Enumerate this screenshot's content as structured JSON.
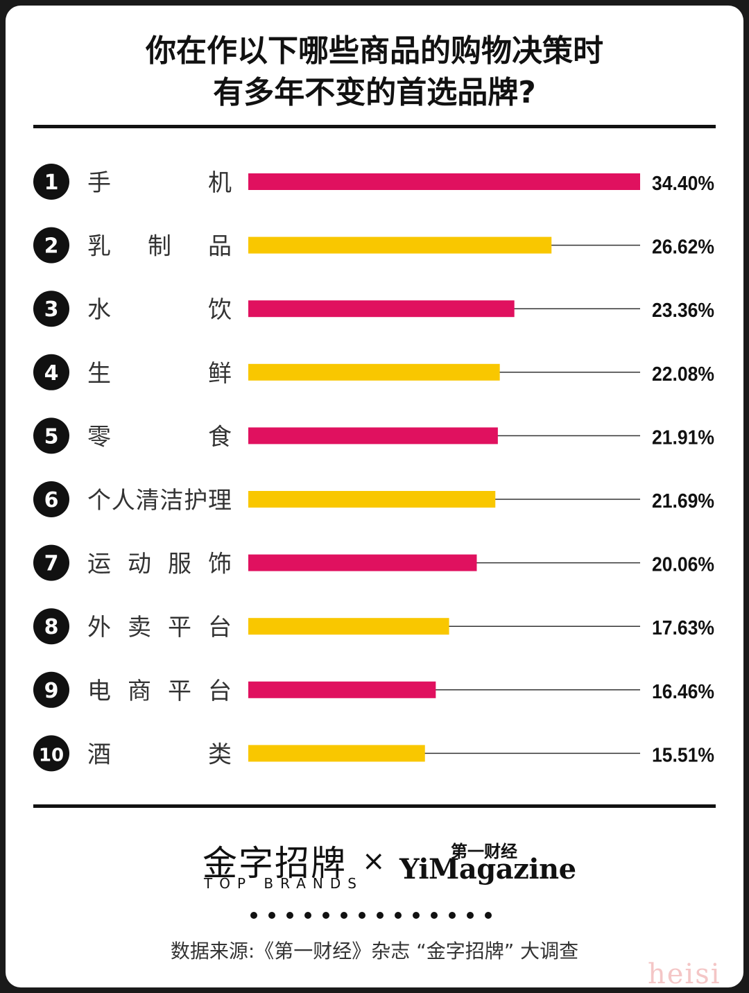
{
  "title": {
    "line1": "你在作以下哪些商品的购物决策时",
    "line2": "有多年不变的首选品牌?"
  },
  "colors": {
    "magenta": "#e0115f",
    "yellow": "#f9c700",
    "ink": "#111111"
  },
  "chart_data": {
    "type": "bar",
    "orientation": "horizontal",
    "categories": [
      "手 机",
      "乳 制 品",
      "水 饮",
      "生 鲜",
      "零 食",
      "个人清洁护理",
      "运 动 服 饰",
      "外 卖 平 台",
      "电 商 平 台",
      "酒 类"
    ],
    "ranks": [
      "1",
      "2",
      "3",
      "4",
      "5",
      "6",
      "7",
      "8",
      "9",
      "10"
    ],
    "values": [
      34.4,
      26.62,
      23.36,
      22.08,
      21.91,
      21.69,
      20.06,
      17.63,
      16.46,
      15.51
    ],
    "value_labels": [
      "34.40%",
      "26.62%",
      "23.36%",
      "22.08%",
      "21.91%",
      "21.69%",
      "20.06%",
      "17.63%",
      "16.46%",
      "15.51%"
    ],
    "bar_colors": [
      "#e0115f",
      "#f9c700",
      "#e0115f",
      "#f9c700",
      "#e0115f",
      "#f9c700",
      "#e0115f",
      "#f9c700",
      "#e0115f",
      "#f9c700"
    ],
    "xlim": [
      0,
      34.4
    ],
    "grid": false,
    "legend": "none"
  },
  "footer": {
    "logo_cn": "金字招牌",
    "logo_en": "TOP BRANDS",
    "times": "×",
    "partner_cn": "第一财经",
    "partner_en": "YiMagazine",
    "source": "数据来源:《第一财经》杂志 “金字招牌” 大调查"
  },
  "watermark": "heisi"
}
